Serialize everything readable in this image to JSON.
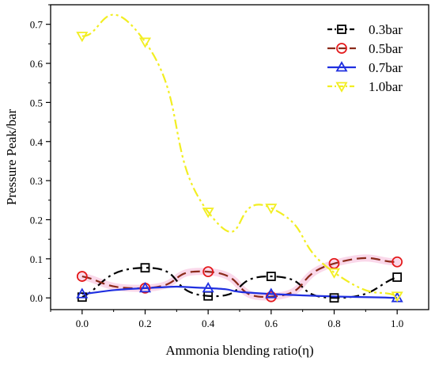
{
  "chart_data": {
    "type": "line",
    "xlabel": "Ammonia blending ratio(η)",
    "ylabel": "Pressure Peak/bar",
    "xlim": [
      -0.1,
      1.1
    ],
    "ylim": [
      -0.03,
      0.75
    ],
    "xticks": [
      "0.0",
      "0.2",
      "0.4",
      "0.6",
      "0.8",
      "1.0"
    ],
    "yticks": [
      "0.0",
      "0.1",
      "0.2",
      "0.3",
      "0.4",
      "0.5",
      "0.6",
      "0.7"
    ],
    "grid": false,
    "legend_position": "top-right",
    "x": [
      0.0,
      0.2,
      0.4,
      0.6,
      0.8,
      1.0
    ],
    "series": [
      {
        "name": "0.3bar",
        "values": [
          0.002,
          0.077,
          0.005,
          0.055,
          0.0,
          0.053
        ],
        "color": "#000000",
        "marker": "square",
        "line_style": "dash-dot"
      },
      {
        "name": "0.5bar",
        "values": [
          0.055,
          0.025,
          0.067,
          0.003,
          0.088,
          0.092
        ],
        "color": "#e41a1c",
        "line_color": "#8b2a1a",
        "marker": "circle",
        "line_style": "dashed"
      },
      {
        "name": "0.7bar",
        "values": [
          0.01,
          0.025,
          0.025,
          0.01,
          null,
          0.0
        ],
        "color": "#1f2fe0",
        "marker": "triangle-up",
        "line_style": "solid"
      },
      {
        "name": "1.0bar",
        "values": [
          0.67,
          0.655,
          0.22,
          0.23,
          0.065,
          0.005
        ],
        "color": "#f2ee22",
        "marker": "triangle-down",
        "line_style": "dash-dot-dot"
      }
    ]
  }
}
